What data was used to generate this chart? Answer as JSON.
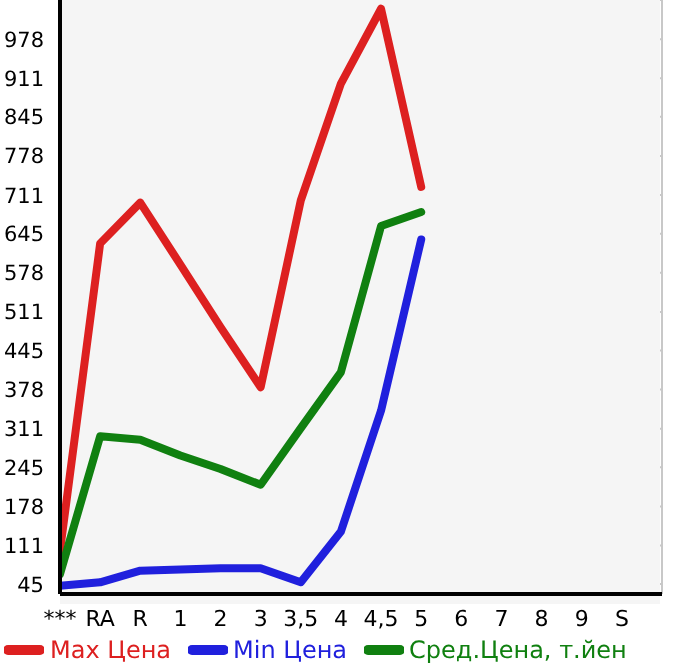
{
  "chart_data": {
    "type": "line",
    "categories": [
      "***",
      "RA",
      "R",
      "1",
      "2",
      "3",
      "3,5",
      "4",
      "4,5",
      "5",
      "6",
      "7",
      "8",
      "9",
      "S"
    ],
    "series": [
      {
        "name": "Max Цена",
        "color": "#dd2020",
        "values": [
          102,
          628,
          698,
          592,
          485,
          382,
          702,
          902,
          1030,
          725,
          null,
          null,
          null,
          null,
          null
        ]
      },
      {
        "name": "Min Цена",
        "color": "#2020dd",
        "values": [
          42,
          48,
          68,
          70,
          72,
          72,
          48,
          135,
          342,
          635,
          null,
          null,
          null,
          null,
          null
        ]
      },
      {
        "name": "Сред.Цена, т.йен",
        "color": "#108010",
        "values": [
          62,
          298,
          292,
          265,
          242,
          215,
          312,
          408,
          658,
          682,
          null,
          null,
          null,
          null,
          null
        ]
      }
    ],
    "ylim": [
      28,
      1045
    ],
    "yticks": [
      45,
      111,
      178,
      245,
      311,
      378,
      445,
      511,
      578,
      645,
      711,
      778,
      845,
      911,
      978
    ],
    "grid": true,
    "legend": "bottom",
    "marker": "none",
    "line_style": "solid"
  }
}
